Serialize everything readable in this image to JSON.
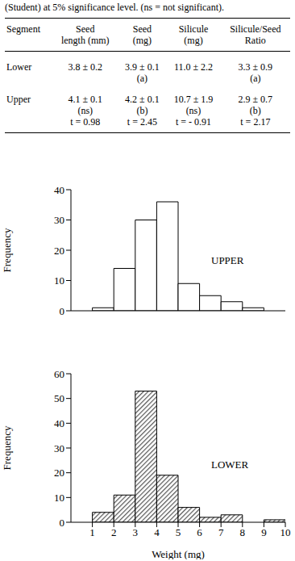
{
  "caption": "(Student)  at 5% significance level. (ns = not significant).",
  "table": {
    "header": [
      [
        "Segment"
      ],
      [
        "Seed",
        "length (mm)"
      ],
      [
        "Seed",
        "(mg)"
      ],
      [
        "Silicule",
        "(mg)"
      ],
      [
        "Silicule/Seed",
        "Ratio"
      ]
    ],
    "rows": [
      [
        [
          "Lower"
        ],
        [
          "3.8 ± 0.2"
        ],
        [
          "3.9 ± 0.1",
          "(a)"
        ],
        [
          "11.0 ± 2.2"
        ],
        [
          "3.3 ± 0.9",
          "(a)"
        ]
      ],
      [
        [
          "Upper"
        ],
        [
          "4.1 ± 0.1",
          "(ns)",
          "t = 0.98"
        ],
        [
          "4.2 ± 0.1",
          "(b)",
          "t = 2.45"
        ],
        [
          "10.7 ± 1.9",
          "(ns)",
          "t = - 0.91"
        ],
        [
          "2.9 ± 0.7",
          "(b)",
          "t = 2.17"
        ]
      ]
    ]
  },
  "chart_data": [
    {
      "type": "histogram",
      "annotations": [
        "UPPER"
      ],
      "ylabel": "Frequency",
      "bins": [
        1,
        2,
        3,
        4,
        5,
        6,
        7,
        8,
        9
      ],
      "counts": [
        1,
        14,
        30,
        36,
        9,
        5,
        3,
        1
      ],
      "color": "#ffffff",
      "xlim": [
        0,
        10
      ],
      "ylim": [
        0,
        40
      ],
      "yticks": [
        0,
        10,
        20,
        30,
        40
      ],
      "tick_labels": "y"
    },
    {
      "type": "histogram",
      "annotations": [
        "LOWER"
      ],
      "ylabel": "Frequency",
      "xlabel": "Weight (mg)",
      "bins": [
        1,
        2,
        3,
        4,
        5,
        6,
        7,
        8,
        9,
        10
      ],
      "counts": [
        4,
        11,
        53,
        19,
        6,
        2,
        3,
        0,
        1
      ],
      "color": "#555555",
      "xlim": [
        0,
        10
      ],
      "xticks": [
        1,
        2,
        3,
        4,
        5,
        6,
        7,
        8,
        9,
        10
      ],
      "ylim": [
        0,
        60
      ],
      "yticks": [
        0,
        10,
        20,
        30,
        40,
        50,
        60
      ]
    }
  ]
}
